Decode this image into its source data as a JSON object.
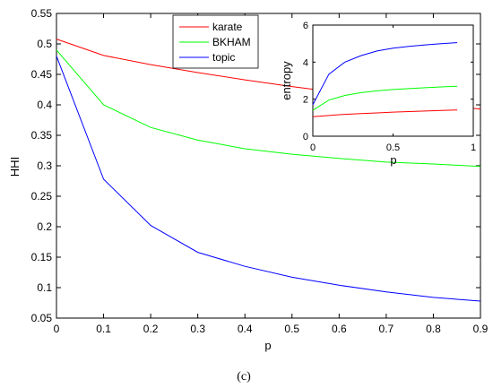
{
  "chart_data": {
    "main": {
      "type": "line",
      "xlabel": "p",
      "ylabel": "HHI",
      "xlim": [
        0,
        0.9
      ],
      "ylim": [
        0.05,
        0.55
      ],
      "xticks": [
        "0",
        "0.1",
        "0.2",
        "0.3",
        "0.4",
        "0.5",
        "0.6",
        "0.7",
        "0.8",
        "0.9"
      ],
      "yticks": [
        "0.05",
        "0.1",
        "0.15",
        "0.2",
        "0.25",
        "0.3",
        "0.35",
        "0.4",
        "0.45",
        "0.5",
        "0.55"
      ],
      "grid": false,
      "legend_position": "top-center",
      "x": [
        0,
        0.1,
        0.2,
        0.3,
        0.4,
        0.5,
        0.6,
        0.7,
        0.8,
        0.9
      ],
      "series": [
        {
          "name": "karate",
          "color": "#ff0000",
          "values": [
            0.508,
            0.481,
            0.466,
            0.453,
            0.441,
            0.43,
            0.42,
            0.41,
            0.401,
            0.393
          ]
        },
        {
          "name": "BKHAM",
          "color": "#00ff00",
          "values": [
            0.49,
            0.4,
            0.363,
            0.342,
            0.328,
            0.319,
            0.312,
            0.306,
            0.303,
            0.299
          ]
        },
        {
          "name": "topic",
          "color": "#0000ff",
          "values": [
            0.48,
            0.278,
            0.202,
            0.158,
            0.135,
            0.117,
            0.104,
            0.093,
            0.084,
            0.078
          ]
        }
      ]
    },
    "inset": {
      "type": "line",
      "xlabel": "p",
      "ylabel": "entropy",
      "xlim": [
        0,
        1
      ],
      "ylim": [
        0,
        6
      ],
      "xticks": [
        "0",
        "0.5",
        "1"
      ],
      "yticks": [
        "0",
        "2",
        "4",
        "6"
      ],
      "x": [
        0,
        0.1,
        0.2,
        0.3,
        0.4,
        0.5,
        0.6,
        0.7,
        0.8,
        0.9
      ],
      "series": [
        {
          "name": "karate",
          "color": "#ff0000",
          "values": [
            1.05,
            1.12,
            1.18,
            1.22,
            1.26,
            1.3,
            1.33,
            1.36,
            1.39,
            1.42
          ]
        },
        {
          "name": "BKHAM",
          "color": "#00ff00",
          "values": [
            1.4,
            1.95,
            2.2,
            2.35,
            2.45,
            2.52,
            2.57,
            2.62,
            2.66,
            2.7
          ]
        },
        {
          "name": "topic",
          "color": "#0000ff",
          "values": [
            1.7,
            3.35,
            4.0,
            4.35,
            4.6,
            4.75,
            4.85,
            4.93,
            5.0,
            5.05
          ]
        }
      ]
    }
  },
  "caption": "(c)"
}
